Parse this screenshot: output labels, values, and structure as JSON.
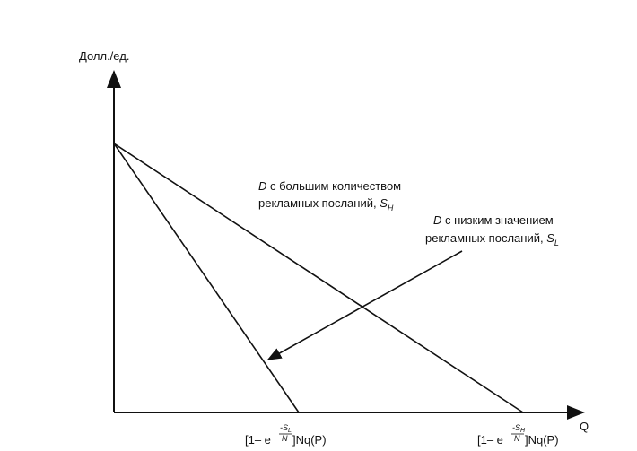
{
  "axes": {
    "y_label": "Долл./ед.",
    "x_label": "Q"
  },
  "curves": [
    {
      "letter": "D",
      "line1": " с большим количеством",
      "line2": "рекламных посланий, ",
      "symbol": "S",
      "subscript": "H"
    },
    {
      "letter": "D",
      "line1": " с низким значением",
      "line2": "рекламных посланий, ",
      "symbol": "S",
      "subscript": "L"
    }
  ],
  "intercepts": [
    {
      "prefix": "[1– e",
      "exponent": "-S",
      "exponent_subscript": "L",
      "denominator": "N",
      "suffix": "]Nq(P)"
    },
    {
      "prefix": "[1– e",
      "exponent": "-S",
      "exponent_subscript": "H",
      "denominator": "N",
      "suffix": "]Nq(P)"
    }
  ]
}
